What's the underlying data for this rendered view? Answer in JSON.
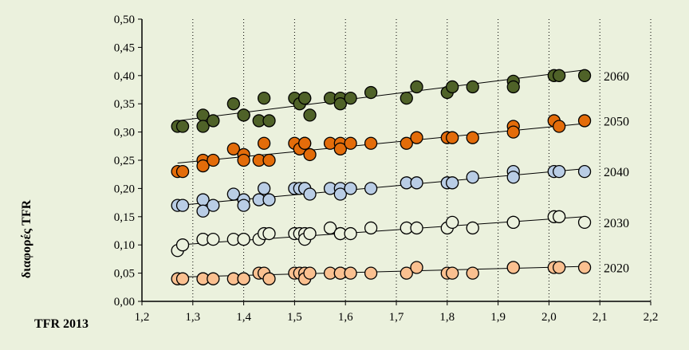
{
  "chart_data": {
    "type": "scatter",
    "title": "",
    "xlabel": "TFR 2013",
    "ylabel": "διαφορές TFR",
    "xlim": [
      1.2,
      2.2
    ],
    "ylim": [
      0.0,
      0.5
    ],
    "x_ticks": [
      "1,2",
      "1,3",
      "1,4",
      "1,5",
      "1,6",
      "1,7",
      "1,8",
      "1,9",
      "2,0",
      "2,1",
      "2,2"
    ],
    "y_ticks": [
      "0,00",
      "0,05",
      "0,10",
      "0,15",
      "0,20",
      "0,25",
      "0,30",
      "0,35",
      "0,40",
      "0,45",
      "0,50"
    ],
    "grid": "vertical dotted",
    "trendlines": true,
    "x": [
      1.27,
      1.28,
      1.32,
      1.32,
      1.34,
      1.38,
      1.4,
      1.4,
      1.43,
      1.44,
      1.45,
      1.5,
      1.51,
      1.52,
      1.52,
      1.53,
      1.57,
      1.59,
      1.59,
      1.61,
      1.65,
      1.72,
      1.74,
      1.8,
      1.81,
      1.85,
      1.93,
      1.93,
      2.01,
      2.02,
      2.07
    ],
    "series": [
      {
        "name": "2060",
        "color": "#4f6228",
        "values": [
          0.31,
          0.31,
          0.33,
          0.31,
          0.32,
          0.35,
          0.33,
          0.33,
          0.32,
          0.36,
          0.32,
          0.36,
          0.35,
          0.36,
          0.36,
          0.33,
          0.36,
          0.36,
          0.35,
          0.36,
          0.37,
          0.36,
          0.38,
          0.37,
          0.38,
          0.38,
          0.39,
          0.38,
          0.4,
          0.4,
          0.4
        ],
        "trend": [
          0.32,
          0.41
        ]
      },
      {
        "name": "2050",
        "color": "#e36c0a",
        "values": [
          0.23,
          0.23,
          0.25,
          0.24,
          0.25,
          0.27,
          0.26,
          0.25,
          0.25,
          0.28,
          0.25,
          0.28,
          0.27,
          0.28,
          0.28,
          0.26,
          0.28,
          0.28,
          0.27,
          0.28,
          0.28,
          0.28,
          0.29,
          0.29,
          0.29,
          0.29,
          0.31,
          0.3,
          0.32,
          0.31,
          0.32
        ],
        "trend": [
          0.245,
          0.315
        ]
      },
      {
        "name": "2040",
        "color": "#b9cde5",
        "values": [
          0.17,
          0.17,
          0.18,
          0.16,
          0.17,
          0.19,
          0.18,
          0.17,
          0.18,
          0.2,
          0.18,
          0.2,
          0.2,
          0.2,
          0.2,
          0.19,
          0.2,
          0.2,
          0.19,
          0.2,
          0.2,
          0.21,
          0.21,
          0.21,
          0.21,
          0.22,
          0.23,
          0.22,
          0.23,
          0.23,
          0.23
        ],
        "trend": [
          0.17,
          0.235
        ]
      },
      {
        "name": "2030",
        "color": "#ebf1dd",
        "values": [
          0.09,
          0.1,
          0.11,
          0.11,
          0.11,
          0.11,
          0.11,
          0.11,
          0.11,
          0.12,
          0.12,
          0.12,
          0.12,
          0.12,
          0.11,
          0.12,
          0.13,
          0.12,
          0.12,
          0.12,
          0.13,
          0.13,
          0.13,
          0.13,
          0.14,
          0.13,
          0.14,
          0.14,
          0.15,
          0.15,
          0.14
        ],
        "trend": [
          0.1,
          0.15
        ]
      },
      {
        "name": "2020",
        "color": "#fac090",
        "values": [
          0.04,
          0.04,
          0.04,
          0.04,
          0.04,
          0.04,
          0.04,
          0.04,
          0.05,
          0.05,
          0.04,
          0.05,
          0.05,
          0.05,
          0.04,
          0.05,
          0.05,
          0.05,
          0.05,
          0.05,
          0.05,
          0.05,
          0.06,
          0.05,
          0.05,
          0.05,
          0.06,
          0.06,
          0.06,
          0.06,
          0.06
        ],
        "trend": [
          0.043,
          0.062
        ]
      }
    ]
  }
}
